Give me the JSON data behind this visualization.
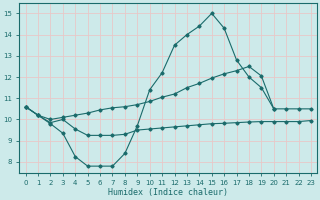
{
  "xlabel": "Humidex (Indice chaleur)",
  "bg_color": "#cdeaea",
  "grid_color": "#e8c8c8",
  "line_color": "#1a6b6b",
  "xlim": [
    -0.5,
    23.5
  ],
  "ylim": [
    7.5,
    15.5
  ],
  "yticks": [
    8,
    9,
    10,
    11,
    12,
    13,
    14,
    15
  ],
  "xticks": [
    0,
    1,
    2,
    3,
    4,
    5,
    6,
    7,
    8,
    9,
    10,
    11,
    12,
    13,
    14,
    15,
    16,
    17,
    18,
    19,
    20,
    21,
    22,
    23
  ],
  "series1_x": [
    0,
    1,
    2,
    3,
    4,
    5,
    6,
    7,
    8,
    9,
    10,
    11,
    12,
    13,
    14,
    15,
    16,
    17,
    18,
    19,
    20
  ],
  "series1_y": [
    10.6,
    10.2,
    9.8,
    9.35,
    8.25,
    7.8,
    7.8,
    7.8,
    8.4,
    9.7,
    11.4,
    12.2,
    13.5,
    14.0,
    14.4,
    15.0,
    14.3,
    12.8,
    12.0,
    11.5,
    10.5
  ],
  "series2_x": [
    0,
    1,
    2,
    3,
    4,
    5,
    6,
    7,
    8,
    9,
    10,
    11,
    12,
    13,
    14,
    15,
    16,
    17,
    18,
    19,
    20,
    21,
    22,
    23
  ],
  "series2_y": [
    10.6,
    10.2,
    9.85,
    10.0,
    9.55,
    9.25,
    9.25,
    9.25,
    9.3,
    9.5,
    9.55,
    9.6,
    9.65,
    9.7,
    9.75,
    9.8,
    9.82,
    9.85,
    9.88,
    9.9,
    9.9,
    9.9,
    9.9,
    9.95
  ],
  "series3_x": [
    0,
    1,
    2,
    3,
    4,
    5,
    6,
    7,
    8,
    9,
    10,
    11,
    12,
    13,
    14,
    15,
    16,
    17,
    18,
    19,
    20,
    21,
    22,
    23
  ],
  "series3_y": [
    10.6,
    10.2,
    10.0,
    10.1,
    10.2,
    10.3,
    10.45,
    10.55,
    10.6,
    10.7,
    10.85,
    11.05,
    11.2,
    11.5,
    11.7,
    11.95,
    12.15,
    12.3,
    12.5,
    12.05,
    10.5,
    10.5,
    10.5,
    10.5
  ],
  "figwidth": 3.2,
  "figheight": 2.0,
  "dpi": 100
}
